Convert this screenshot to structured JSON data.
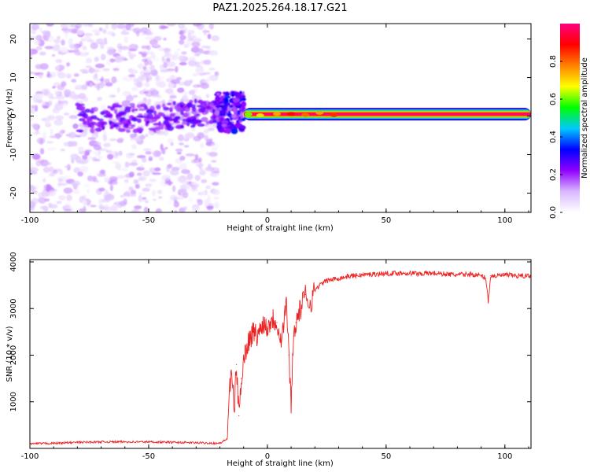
{
  "chart_data": [
    {
      "type": "heatmap",
      "title": "PAZ1.2025.264.18.17.G21",
      "xlabel": "Height of straight line (km)",
      "ylabel": "Frequency (Hz)",
      "xlim": [
        -100,
        111
      ],
      "ylim": [
        -25,
        24
      ],
      "xticks": [
        -100,
        -50,
        0,
        50,
        100
      ],
      "yticks": [
        -20,
        -10,
        0,
        10,
        20
      ],
      "grid": false,
      "colorbar": {
        "label": "Normalized spectral amplitude",
        "range": [
          0,
          1
        ],
        "ticks": [
          0.0,
          0.2,
          0.4,
          0.6,
          0.8
        ],
        "colormap": [
          "#ffffff",
          "#d8b8ff",
          "#9000ff",
          "#0000ff",
          "#00c8ff",
          "#00ff00",
          "#ffff00",
          "#ff8000",
          "#ff0000",
          "#ff0080"
        ]
      },
      "features": [
        {
          "segment": "noise",
          "x_range": [
            -100,
            -21
          ],
          "freq_range": [
            -25,
            24
          ],
          "amplitude": 0.1
        },
        {
          "segment": "transition",
          "x_range": [
            -21,
            -10
          ],
          "freq_range": [
            -4,
            6
          ],
          "amplitude": 0.3
        },
        {
          "segment": "signal-line",
          "x_range": [
            -10,
            111
          ],
          "freq": 0.5,
          "amplitude": 1.0
        }
      ]
    },
    {
      "type": "line",
      "xlabel": "Height of straight line (km)",
      "ylabel": "SNR (10 * v/v)",
      "xlim": [
        -100,
        111
      ],
      "ylim": [
        0,
        4050
      ],
      "xticks": [
        -100,
        -50,
        0,
        50,
        100
      ],
      "yticks": [
        1000,
        2000,
        3000,
        4000
      ],
      "color": "#ee2222",
      "grid": false,
      "series": [
        {
          "x": [
            -100,
            -90,
            -80,
            -70,
            -60,
            -50,
            -40,
            -30,
            -20,
            -17,
            -16,
            -15,
            -14,
            -13,
            -12,
            -11,
            -10,
            -8,
            -6,
            -4,
            -2,
            0,
            2,
            4,
            6,
            8,
            9,
            10,
            11,
            12,
            14,
            16,
            18,
            20,
            22,
            25,
            30,
            35,
            40,
            45,
            50,
            55,
            60,
            65,
            70,
            75,
            80,
            85,
            90,
            92,
            93,
            94,
            96,
            100,
            105,
            111
          ],
          "y": [
            100,
            110,
            130,
            140,
            140,
            140,
            130,
            120,
            110,
            200,
            1200,
            1600,
            800,
            1800,
            700,
            1500,
            1900,
            2300,
            2500,
            2400,
            2700,
            2600,
            2800,
            2700,
            2300,
            3200,
            2000,
            1000,
            2400,
            2700,
            3000,
            3300,
            3100,
            3400,
            3500,
            3600,
            3650,
            3700,
            3720,
            3740,
            3750,
            3760,
            3760,
            3750,
            3760,
            3740,
            3720,
            3740,
            3700,
            3650,
            3150,
            3700,
            3700,
            3720,
            3700,
            3700
          ]
        }
      ]
    }
  ]
}
